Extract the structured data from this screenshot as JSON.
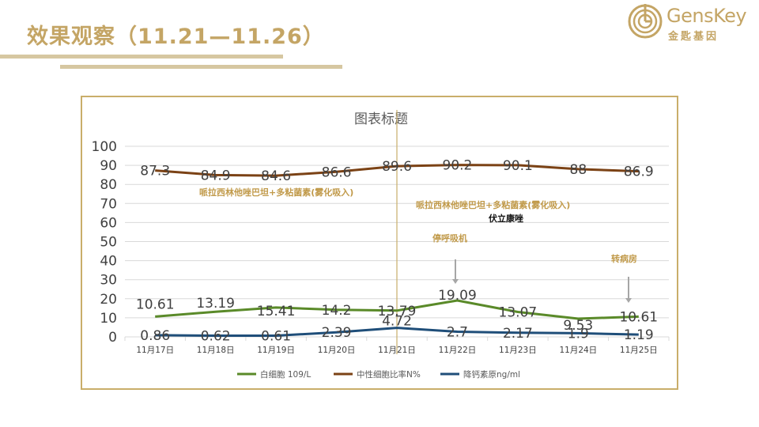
{
  "slide": {
    "title": "效果观察（11.21—11.26）"
  },
  "logo": {
    "name": "GensKey",
    "subtitle": "金匙基因",
    "icon": "genskey-logo-icon"
  },
  "colors": {
    "accent": "#c4a565",
    "frame": "#c9ae6a",
    "annotation": "#c19a4a",
    "annotation_dark": "#111111",
    "gridline": "#d9d9d9"
  },
  "chart_data": {
    "type": "line",
    "title": "图表标题",
    "categories": [
      "11月17日",
      "11月18日",
      "11月19日",
      "11月20日",
      "11月21日",
      "11月22日",
      "11月23日",
      "11月24日",
      "11月25日"
    ],
    "ylim": [
      0,
      100
    ],
    "yticks": [
      0,
      10,
      20,
      30,
      40,
      50,
      60,
      70,
      80,
      90,
      100
    ],
    "grid": true,
    "legend_position": "bottom",
    "series": [
      {
        "name": "白细胞 109/L",
        "color": "#5a8a29",
        "values": [
          10.61,
          13.19,
          15.41,
          14.2,
          13.79,
          19.09,
          13.07,
          9.53,
          10.61
        ]
      },
      {
        "name": "中性细胞比率N%",
        "color": "#7b4215",
        "values": [
          87.3,
          84.9,
          84.6,
          86.6,
          89.6,
          90.2,
          90.1,
          88,
          86.9
        ]
      },
      {
        "name": "降钙素原ng/ml",
        "color": "#1f4e79",
        "values": [
          0.86,
          0.62,
          0.61,
          2.39,
          4.72,
          2.7,
          2.17,
          1.9,
          1.19
        ]
      }
    ],
    "annotations": [
      {
        "text": "哌拉西林他唑巴坦+多粘菌素(雾化吸入)",
        "style": "gold"
      },
      {
        "text": "哌拉西林他唑巴坦+多粘菌素(雾化吸入)",
        "style": "gold"
      },
      {
        "text": "伏立康唑",
        "style": "dark"
      },
      {
        "text": "停呼吸机",
        "style": "gold"
      },
      {
        "text": "转病房",
        "style": "gold"
      }
    ]
  }
}
